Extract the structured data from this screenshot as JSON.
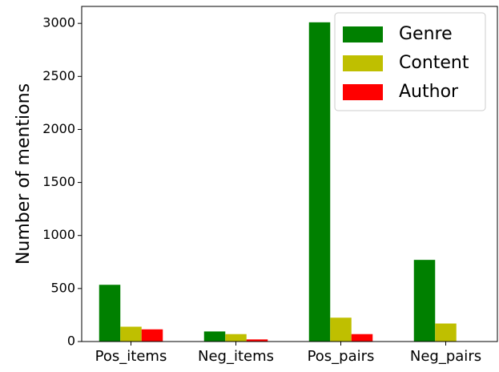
{
  "chart_data": {
    "type": "grouped_bar",
    "y_label": "Number of mentions",
    "categories": [
      "Pos_items",
      "Neg_items",
      "Pos_pairs",
      "Neg_pairs"
    ],
    "series": [
      {
        "name": "Genre",
        "color": "#008000",
        "values": [
          535,
          95,
          3010,
          770
        ]
      },
      {
        "name": "Content",
        "color": "#bfbf00",
        "values": [
          140,
          70,
          225,
          170
        ]
      },
      {
        "name": "Author",
        "color": "#ff0000",
        "values": [
          115,
          20,
          70,
          0
        ]
      }
    ],
    "ylim": [
      0,
      3160
    ],
    "yticks": [
      0,
      500,
      1000,
      1500,
      2000,
      2500,
      3000
    ],
    "legend": "upper right"
  }
}
